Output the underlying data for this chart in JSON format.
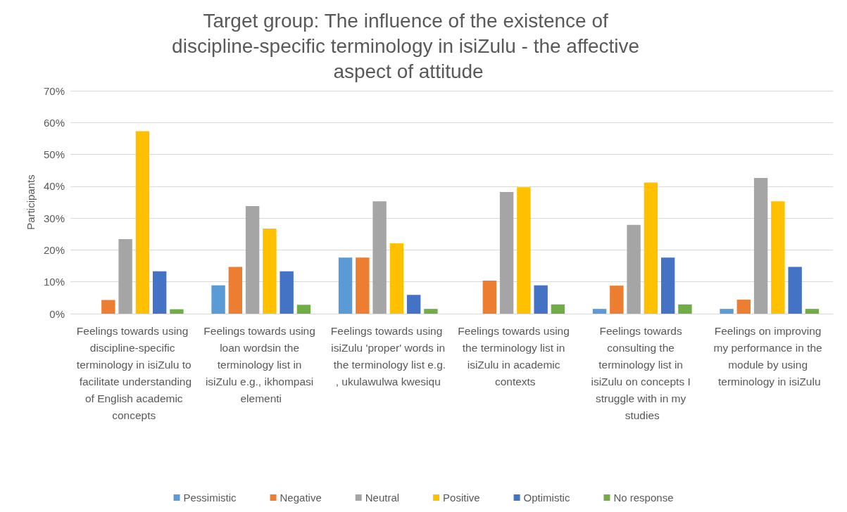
{
  "chart_data": {
    "type": "bar",
    "title": "Target group: The influence of the existence of discipline-specific terminology in isiZulu - the affective aspect of attitude",
    "ylabel": "Participants",
    "categories": [
      "Feelings towards using discipline-specific terminology in isiZulu to facilitate understanding of English academic concepts",
      "Feelings towards using loan wordsin the terminology list in isiZulu e.g., ikhompasi elementi",
      "Feelings towards using isiZulu 'proper' words in the terminology list e.g., ukulawulwa kwesiqu",
      "Feelings towards using the terminology list in isiZulu in academic contexts",
      "Feelings towards consulting the terminology list in isiZulu on concepts I struggle with in my studies",
      "Feelings on improving my performance in the module by using terminology in isiZulu"
    ],
    "series": [
      {
        "name": "Pessimistic",
        "color": "#5b9bd5",
        "values": [
          0,
          8.9,
          17.6,
          0,
          1.5,
          1.5
        ]
      },
      {
        "name": "Negative",
        "color": "#ed7d31",
        "values": [
          4.3,
          14.7,
          17.6,
          10.4,
          8.8,
          4.4
        ]
      },
      {
        "name": "Neutral",
        "color": "#a5a5a5",
        "values": [
          23.4,
          33.8,
          35.3,
          38.2,
          27.9,
          42.6
        ]
      },
      {
        "name": "Positive",
        "color": "#ffc000",
        "values": [
          57.3,
          26.7,
          22.1,
          39.7,
          41.2,
          35.3
        ]
      },
      {
        "name": "Optimistic",
        "color": "#4472c4",
        "values": [
          13.3,
          13.3,
          5.9,
          8.9,
          17.6,
          14.7
        ]
      },
      {
        "name": "No response",
        "color": "#70ad47",
        "values": [
          1.4,
          2.8,
          1.5,
          2.9,
          2.9,
          1.5
        ]
      }
    ],
    "ylim": [
      0,
      70
    ],
    "yticks": [
      {
        "value": 0,
        "label": "0%"
      },
      {
        "value": 10,
        "label": "10%"
      },
      {
        "value": 20,
        "label": "20%"
      },
      {
        "value": 30,
        "label": "30%"
      },
      {
        "value": 40,
        "label": "40%"
      },
      {
        "value": 50,
        "label": "50%"
      },
      {
        "value": 60,
        "label": "60%"
      },
      {
        "value": 70,
        "label": "70%"
      }
    ],
    "grid": "y",
    "legend": "bottom"
  }
}
